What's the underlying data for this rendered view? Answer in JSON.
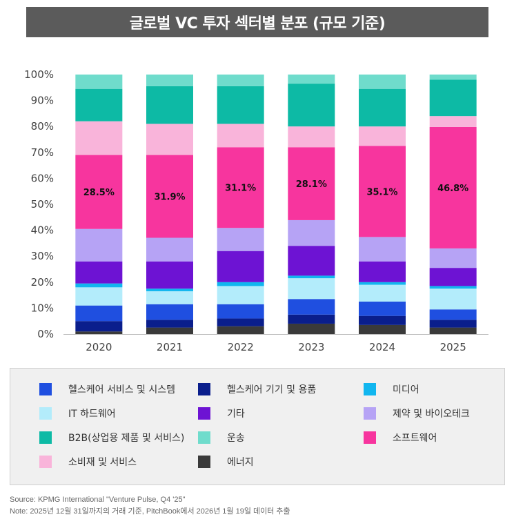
{
  "title": "글로벌 VC 투자 섹터별 분포 (규모 기준)",
  "chart_data": {
    "type": "bar",
    "stacked": true,
    "categories": [
      "2020",
      "2021",
      "2022",
      "2023",
      "2024",
      "2025"
    ],
    "ylim": [
      0,
      100
    ],
    "yticks": [
      "0%",
      "10%",
      "20%",
      "30%",
      "40%",
      "50%",
      "60%",
      "70%",
      "80%",
      "90%",
      "100%"
    ],
    "series": [
      {
        "name": "에너지",
        "color": "#3a3a3a",
        "values": [
          1,
          2.5,
          3,
          4,
          3.5,
          2.5
        ]
      },
      {
        "name": "헬스케어 기기 및 용품",
        "color": "#0a1e8c",
        "values": [
          4,
          3,
          3,
          3.5,
          3.5,
          3
        ]
      },
      {
        "name": "헬스케어 서비스 및 시스템",
        "color": "#1f4fe0",
        "values": [
          6,
          6,
          5.5,
          6,
          5.5,
          4
        ]
      },
      {
        "name": "IT 하드웨어",
        "color": "#b3ecfb",
        "values": [
          7,
          5,
          7,
          8,
          6.5,
          8
        ]
      },
      {
        "name": "미디어",
        "color": "#11b6ef",
        "values": [
          1.5,
          1,
          1.5,
          1,
          1,
          1
        ]
      },
      {
        "name": "기타",
        "color": "#6d13d3",
        "values": [
          8.5,
          10.5,
          12,
          11.5,
          8,
          7
        ]
      },
      {
        "name": "제약 및 바이오테크",
        "color": "#b6a3f5",
        "values": [
          12.5,
          9.1,
          8.9,
          9.9,
          9.4,
          7.5
        ]
      },
      {
        "name": "소프트웨어",
        "color": "#f7359e",
        "values": [
          28.5,
          31.9,
          31.1,
          28.1,
          35.1,
          46.8
        ]
      },
      {
        "name": "소비재 및 서비스",
        "color": "#f9b4da",
        "values": [
          13,
          12,
          9,
          8,
          7.5,
          4.2
        ]
      },
      {
        "name": "B2B(상업용 제품 및 서비스)",
        "color": "#0dbaa5",
        "values": [
          12.5,
          14.5,
          14.5,
          16.5,
          14.5,
          14
        ]
      },
      {
        "name": "운송",
        "color": "#6fdccc",
        "values": [
          5.5,
          4.5,
          4.5,
          3.5,
          5.5,
          2
        ]
      }
    ],
    "data_labels": {
      "series": "소프트웨어",
      "labels": [
        "28.5%",
        "31.9%",
        "31.1%",
        "28.1%",
        "35.1%",
        "46.8%"
      ]
    }
  },
  "legend": [
    {
      "label": "헬스케어 서비스 및 시스템",
      "color": "#1f4fe0"
    },
    {
      "label": "헬스케어 기기 및 용품",
      "color": "#0a1e8c"
    },
    {
      "label": "미디어",
      "color": "#11b6ef"
    },
    {
      "label": "IT 하드웨어",
      "color": "#b3ecfb"
    },
    {
      "label": "기타",
      "color": "#6d13d3"
    },
    {
      "label": "제약 및 바이오테크",
      "color": "#b6a3f5"
    },
    {
      "label": "B2B(상업용 제품 및 서비스)",
      "color": "#0dbaa5"
    },
    {
      "label": "운송",
      "color": "#6fdccc"
    },
    {
      "label": "소프트웨어",
      "color": "#f7359e"
    },
    {
      "label": "소비재 및 서비스",
      "color": "#f9b4da"
    },
    {
      "label": "에너지",
      "color": "#3a3a3a"
    }
  ],
  "notes": {
    "source": "Source: KPMG International \"Venture Pulse, Q4 '25\"",
    "note": "Note: 2025년 12월 31일까지의 거래 기준, PitchBook에서 2026년 1월 19일 데이터 추출"
  }
}
